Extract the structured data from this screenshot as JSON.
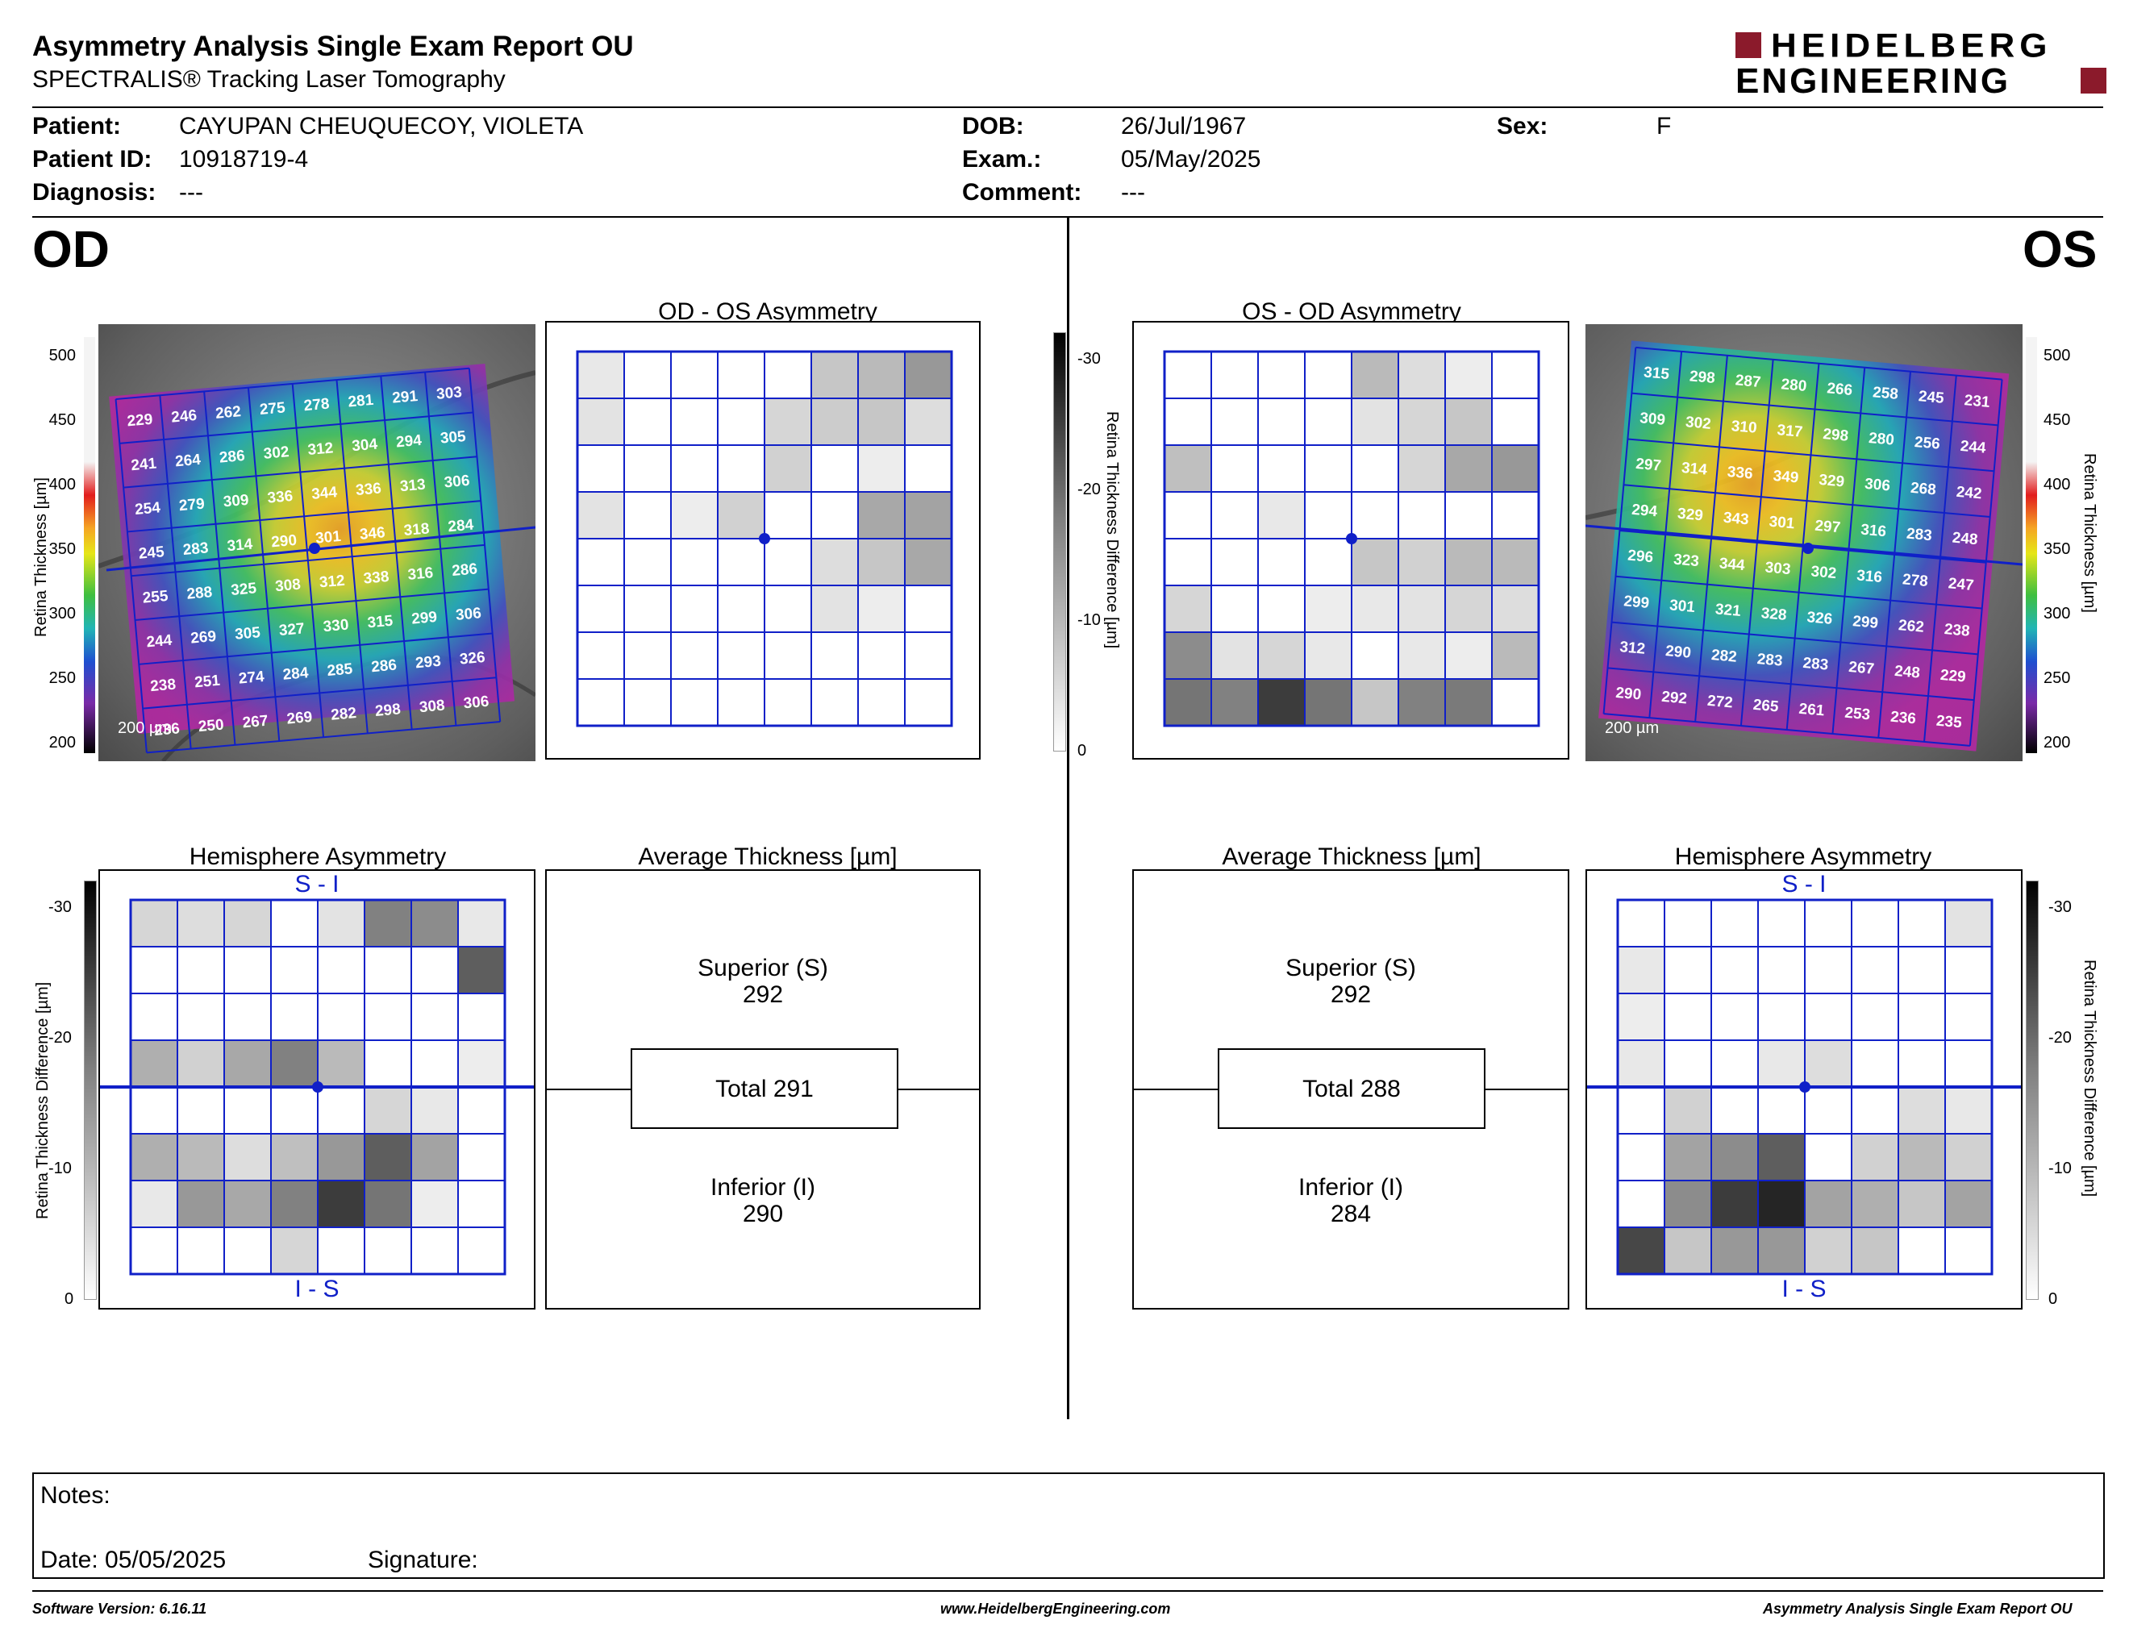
{
  "header": {
    "title": "Asymmetry Analysis Single Exam Report OU",
    "subtitle": "SPECTRALIS® Tracking Laser Tomography",
    "logo_line1": "HEIDELBERG",
    "logo_line2": "ENGINEERING",
    "brand_color": "#8b1a2b"
  },
  "patient": {
    "patient_label": "Patient:",
    "patient_value": "CAYUPAN CHEUQUECOY, VIOLETA",
    "id_label": "Patient ID:",
    "id_value": "10918719-4",
    "diagnosis_label": "Diagnosis:",
    "diagnosis_value": "---",
    "dob_label": "DOB:",
    "dob_value": "26/Jul/1967",
    "exam_label": "Exam.:",
    "exam_value": "05/May/2025",
    "comment_label": "Comment:",
    "comment_value": "---",
    "sex_label": "Sex:",
    "sex_value": "F"
  },
  "eyes": {
    "od": "OD",
    "os": "OS"
  },
  "titles": {
    "od_os_asym": "OD - OS Asymmetry",
    "os_od_asym": "OS - OD Asymmetry",
    "hemi": "Hemisphere Asymmetry",
    "avg": "Average Thickness [µm]"
  },
  "axes": {
    "thickness_label": "Retina  Thickness [µm]",
    "thickness_label_os": "Retina  Thickness [µm]",
    "diff_label": "Retina Thickness Difference [µm]",
    "thickness_ticks": [
      "500",
      "450",
      "400",
      "350",
      "300",
      "250",
      "200"
    ],
    "diff_ticks": [
      "-30",
      "-20",
      "-10",
      "0"
    ],
    "scalebar": "200 µm",
    "si": "S - I",
    "is": "I - S"
  },
  "od_grid": [
    [
      "229",
      "246",
      "262",
      "275",
      "278",
      "281",
      "291",
      "303"
    ],
    [
      "241",
      "264",
      "286",
      "302",
      "312",
      "304",
      "294",
      "305"
    ],
    [
      "254",
      "279",
      "309",
      "336",
      "344",
      "336",
      "313",
      "306"
    ],
    [
      "245",
      "283",
      "314",
      "290",
      "301",
      "346",
      "318",
      "284"
    ],
    [
      "255",
      "288",
      "325",
      "308",
      "312",
      "338",
      "316",
      "286"
    ],
    [
      "244",
      "269",
      "305",
      "327",
      "330",
      "315",
      "299",
      "306"
    ],
    [
      "238",
      "251",
      "274",
      "284",
      "285",
      "286",
      "293",
      "326"
    ],
    [
      "236",
      "250",
      "267",
      "269",
      "282",
      "298",
      "308",
      "306"
    ]
  ],
  "os_grid": [
    [
      "315",
      "298",
      "287",
      "280",
      "266",
      "258",
      "245",
      "231"
    ],
    [
      "309",
      "302",
      "310",
      "317",
      "298",
      "280",
      "256",
      "244"
    ],
    [
      "297",
      "314",
      "336",
      "349",
      "329",
      "306",
      "268",
      "242"
    ],
    [
      "294",
      "329",
      "343",
      "301",
      "297",
      "316",
      "283",
      "248"
    ],
    [
      "296",
      "323",
      "344",
      "303",
      "302",
      "316",
      "278",
      "247"
    ],
    [
      "299",
      "301",
      "321",
      "328",
      "326",
      "299",
      "262",
      "238"
    ],
    [
      "312",
      "290",
      "282",
      "283",
      "283",
      "267",
      "248",
      "229"
    ],
    [
      "290",
      "292",
      "272",
      "265",
      "261",
      "253",
      "236",
      "235"
    ]
  ],
  "od_asym_shades": [
    [
      10,
      0,
      0,
      0,
      0,
      25,
      30,
      45
    ],
    [
      12,
      0,
      0,
      0,
      18,
      22,
      25,
      15
    ],
    [
      0,
      0,
      0,
      0,
      20,
      0,
      8,
      0
    ],
    [
      12,
      0,
      8,
      20,
      0,
      0,
      38,
      40
    ],
    [
      0,
      0,
      0,
      0,
      0,
      15,
      25,
      38
    ],
    [
      0,
      0,
      0,
      0,
      0,
      12,
      8,
      0
    ],
    [
      0,
      0,
      0,
      0,
      0,
      0,
      0,
      0
    ],
    [
      0,
      0,
      0,
      0,
      0,
      0,
      0,
      0
    ]
  ],
  "os_asym_shades": [
    [
      0,
      0,
      0,
      0,
      30,
      15,
      8,
      0
    ],
    [
      0,
      0,
      0,
      0,
      12,
      18,
      25,
      0
    ],
    [
      28,
      0,
      0,
      0,
      0,
      18,
      38,
      45
    ],
    [
      0,
      0,
      10,
      0,
      0,
      0,
      0,
      0
    ],
    [
      0,
      0,
      0,
      0,
      25,
      20,
      30,
      30
    ],
    [
      18,
      0,
      0,
      8,
      10,
      12,
      18,
      15
    ],
    [
      50,
      12,
      18,
      10,
      0,
      10,
      8,
      30
    ],
    [
      60,
      55,
      85,
      60,
      25,
      55,
      58,
      0
    ]
  ],
  "od_hemi_shades": [
    [
      18,
      15,
      18,
      0,
      12,
      55,
      50,
      10
    ],
    [
      0,
      0,
      0,
      0,
      0,
      0,
      0,
      70
    ],
    [
      0,
      0,
      0,
      0,
      0,
      0,
      0,
      0
    ],
    [
      35,
      20,
      38,
      55,
      30,
      0,
      0,
      8
    ],
    [
      0,
      0,
      0,
      0,
      0,
      18,
      10,
      0
    ],
    [
      35,
      30,
      15,
      28,
      45,
      70,
      40,
      0
    ],
    [
      10,
      45,
      38,
      55,
      85,
      60,
      8,
      0
    ],
    [
      0,
      0,
      0,
      18,
      0,
      0,
      0,
      0
    ]
  ],
  "os_hemi_shades": [
    [
      0,
      0,
      0,
      0,
      0,
      0,
      0,
      12
    ],
    [
      10,
      0,
      0,
      0,
      0,
      0,
      0,
      0
    ],
    [
      8,
      0,
      0,
      0,
      0,
      0,
      0,
      0
    ],
    [
      10,
      0,
      0,
      10,
      15,
      0,
      0,
      0
    ],
    [
      0,
      20,
      0,
      0,
      0,
      0,
      15,
      10
    ],
    [
      0,
      40,
      50,
      70,
      0,
      20,
      30,
      20
    ],
    [
      0,
      50,
      85,
      95,
      40,
      35,
      25,
      40
    ],
    [
      80,
      25,
      45,
      45,
      20,
      25,
      0,
      0
    ]
  ],
  "od_avg": {
    "superior_label": "Superior (S)",
    "superior": "292",
    "total": "Total 291",
    "inferior_label": "Inferior (I)",
    "inferior": "290"
  },
  "os_avg": {
    "superior_label": "Superior (S)",
    "superior": "292",
    "total": "Total 288",
    "inferior_label": "Inferior (I)",
    "inferior": "284"
  },
  "notes": {
    "notes_label": "Notes:",
    "date": "Date: 05/05/2025",
    "signature": "Signature:"
  },
  "footer": {
    "version": "Software Version: 6.16.11",
    "url": "www.HeidelbergEngineering.com",
    "report": "Asymmetry Analysis Single Exam Report OU"
  },
  "colors": {
    "grid_blue": "#1020c8"
  }
}
